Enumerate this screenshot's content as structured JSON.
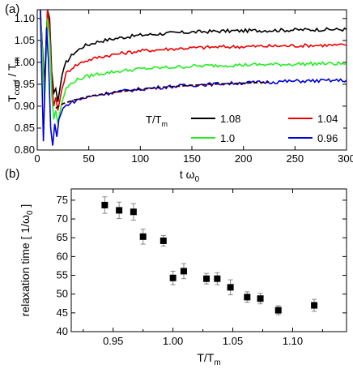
{
  "chart_data": [
    {
      "type": "line",
      "panel_label": "(a)",
      "xlabel": "t ω",
      "xlabel_sub": "0",
      "ylabel": "T",
      "ylabel_sub": "conf",
      "ylabel_mid": " / T",
      "ylabel_sub2": "m",
      "xlim": [
        0,
        300
      ],
      "ylim": [
        0.8,
        1.12
      ],
      "xticks": [
        "0",
        "50",
        "100",
        "150",
        "200",
        "250",
        "300"
      ],
      "yticks": [
        "0.80",
        "0.85",
        "0.90",
        "0.95",
        "1.00",
        "1.05",
        "1.10"
      ],
      "legend_title": "T/T",
      "legend_title_sub": "m",
      "legend_position": "bottom-right",
      "fit_style": "dashed",
      "series": [
        {
          "name": "1.08",
          "color": "#000000",
          "x": [
            3,
            7,
            10,
            12,
            14,
            16,
            18,
            20,
            24,
            28,
            35,
            45,
            60,
            80,
            100,
            125,
            150,
            175,
            200,
            225,
            250,
            275,
            300
          ],
          "y": [
            1.12,
            0.95,
            1.12,
            1.1,
            0.98,
            0.93,
            0.94,
            0.91,
            0.97,
            1.0,
            1.02,
            1.037,
            1.048,
            1.056,
            1.062,
            1.066,
            1.069,
            1.071,
            1.072,
            1.073,
            1.074,
            1.075,
            1.075
          ]
        },
        {
          "name": "1.04",
          "color": "#ee0000",
          "x": [
            3,
            7,
            10,
            12,
            14,
            16,
            18,
            20,
            24,
            28,
            35,
            45,
            60,
            80,
            100,
            125,
            150,
            175,
            200,
            225,
            250,
            275,
            300
          ],
          "y": [
            1.12,
            0.93,
            1.12,
            1.08,
            0.96,
            0.9,
            0.92,
            0.89,
            0.94,
            0.975,
            0.99,
            1.002,
            1.012,
            1.02,
            1.026,
            1.03,
            1.033,
            1.035,
            1.036,
            1.037,
            1.038,
            1.039,
            1.039
          ]
        },
        {
          "name": "1.0",
          "color": "#22ee22",
          "x": [
            3,
            7,
            10,
            12,
            14,
            16,
            18,
            20,
            24,
            28,
            35,
            45,
            60,
            80,
            100,
            125,
            150,
            175,
            200,
            225,
            250,
            275,
            300
          ],
          "y": [
            1.12,
            0.91,
            1.1,
            1.05,
            0.93,
            0.87,
            0.89,
            0.86,
            0.91,
            0.94,
            0.956,
            0.966,
            0.974,
            0.98,
            0.985,
            0.988,
            0.991,
            0.993,
            0.994,
            0.995,
            0.996,
            0.997,
            0.997
          ]
        },
        {
          "name": "0.96",
          "color": "#0000dd",
          "x": [
            3,
            6,
            9,
            11,
            13,
            15,
            17,
            19,
            21,
            25,
            30,
            40,
            55,
            75,
            100,
            125,
            150,
            175,
            200,
            225,
            250,
            275,
            300
          ],
          "y": [
            1.12,
            0.82,
            1.08,
            1.0,
            0.85,
            0.81,
            0.86,
            0.83,
            0.87,
            0.895,
            0.905,
            0.915,
            0.924,
            0.932,
            0.939,
            0.944,
            0.948,
            0.951,
            0.953,
            0.955,
            0.957,
            0.958,
            0.959
          ]
        }
      ],
      "fits": [
        {
          "color": "#ee0000",
          "x": [
            18,
            25,
            35,
            50,
            75,
            100,
            125,
            150,
            175,
            200,
            225
          ],
          "y": [
            0.895,
            0.905,
            0.913,
            0.922,
            0.931,
            0.938,
            0.943,
            0.947,
            0.95,
            0.952,
            0.954
          ]
        },
        {
          "color": "#000000",
          "x": [
            18,
            25,
            35,
            50,
            75,
            100,
            125,
            150,
            175,
            200,
            225
          ],
          "y": [
            0.896,
            0.906,
            0.914,
            0.923,
            0.932,
            0.939,
            0.944,
            0.948,
            0.951,
            0.953,
            0.955
          ]
        }
      ]
    },
    {
      "type": "scatter",
      "panel_label": "(b)",
      "xlabel": "T/T",
      "xlabel_sub": "m",
      "ylabel": "relaxation time  [ 1/ω",
      "ylabel_sub": "0",
      "ylabel_end": " ]",
      "xlim": [
        0.915,
        1.145
      ],
      "ylim": [
        40,
        78
      ],
      "xticks": [
        {
          "v": 0.95,
          "t": "0.95"
        },
        {
          "v": 1.0,
          "t": "1.00"
        },
        {
          "v": 1.05,
          "t": "1.05"
        },
        {
          "v": 1.1,
          "t": "1.10"
        }
      ],
      "yticks": [
        {
          "v": 40,
          "t": "40"
        },
        {
          "v": 45,
          "t": "45"
        },
        {
          "v": 50,
          "t": "50"
        },
        {
          "v": 55,
          "t": "55"
        },
        {
          "v": 60,
          "t": "60"
        },
        {
          "v": 65,
          "t": "65"
        },
        {
          "v": 70,
          "t": "70"
        },
        {
          "v": 75,
          "t": "75"
        }
      ],
      "x": [
        0.943,
        0.955,
        0.967,
        0.975,
        0.992,
        1.0,
        1.009,
        1.028,
        1.037,
        1.048,
        1.062,
        1.073,
        1.088,
        1.118
      ],
      "y": [
        73.7,
        72.3,
        71.9,
        65.3,
        64.2,
        54.3,
        56.1,
        54.1,
        54.1,
        51.8,
        49.2,
        48.8,
        45.7,
        47.0
      ],
      "err": [
        2.2,
        2.2,
        2.2,
        2.0,
        1.4,
        1.8,
        2.0,
        1.4,
        1.6,
        2.0,
        1.4,
        1.4,
        1.2,
        1.6
      ]
    }
  ]
}
